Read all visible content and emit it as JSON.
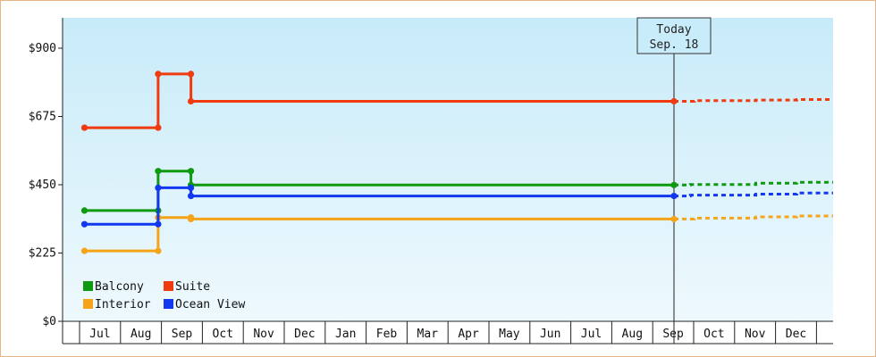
{
  "chart_data": {
    "type": "line",
    "title": "",
    "xlabel": "",
    "ylabel": "",
    "ylim": [
      0,
      1000
    ],
    "yticks": [
      {
        "value": 0,
        "label": "$0"
      },
      {
        "value": 225,
        "label": "$225"
      },
      {
        "value": 450,
        "label": "$450"
      },
      {
        "value": 675,
        "label": "$675"
      },
      {
        "value": 900,
        "label": "$900"
      }
    ],
    "months": [
      "Jul",
      "Aug",
      "Sep",
      "Oct",
      "Nov",
      "Dec",
      "Jan",
      "Feb",
      "Mar",
      "Apr",
      "May",
      "Jun",
      "Jul",
      "Aug",
      "Sep",
      "Oct",
      "Nov",
      "Dec"
    ],
    "axis_start_month_index": -0.4,
    "axis_end_month_index": 18.3,
    "today": {
      "label_line1": "Today",
      "label_line2": "Sep. 18",
      "month_index": 14.0
    },
    "legend": {
      "placement": "bottom-left"
    },
    "grid": false,
    "series": [
      {
        "name": "Balcony",
        "color": "#0e9a0e",
        "steps": [
          {
            "x": -0.4,
            "y": 365
          },
          {
            "x": 1.4,
            "y": 365
          },
          {
            "x": 1.4,
            "y": 495
          },
          {
            "x": 2.2,
            "y": 495
          },
          {
            "x": 2.2,
            "y": 449
          },
          {
            "x": 14.0,
            "y": 449
          }
        ],
        "forecast": [
          {
            "x": 14.0,
            "y": 449
          },
          {
            "x": 14.4,
            "y": 449
          },
          {
            "x": 14.4,
            "y": 451
          },
          {
            "x": 16.0,
            "y": 451
          },
          {
            "x": 16.0,
            "y": 455
          },
          {
            "x": 17.0,
            "y": 455
          },
          {
            "x": 17.0,
            "y": 458
          },
          {
            "x": 18.3,
            "y": 458
          }
        ]
      },
      {
        "name": "Suite",
        "color": "#f03a10",
        "steps": [
          {
            "x": -0.4,
            "y": 638
          },
          {
            "x": 1.4,
            "y": 638
          },
          {
            "x": 1.4,
            "y": 815
          },
          {
            "x": 2.2,
            "y": 815
          },
          {
            "x": 2.2,
            "y": 725
          },
          {
            "x": 14.0,
            "y": 725
          }
        ],
        "forecast": [
          {
            "x": 14.0,
            "y": 725
          },
          {
            "x": 14.5,
            "y": 725
          },
          {
            "x": 14.5,
            "y": 727
          },
          {
            "x": 16.0,
            "y": 727
          },
          {
            "x": 16.0,
            "y": 729
          },
          {
            "x": 17.0,
            "y": 729
          },
          {
            "x": 17.0,
            "y": 731
          },
          {
            "x": 18.3,
            "y": 731
          }
        ]
      },
      {
        "name": "Interior",
        "color": "#f5a318",
        "steps": [
          {
            "x": -0.4,
            "y": 232
          },
          {
            "x": 1.4,
            "y": 232
          },
          {
            "x": 1.4,
            "y": 342
          },
          {
            "x": 2.2,
            "y": 342
          },
          {
            "x": 2.2,
            "y": 337
          },
          {
            "x": 14.0,
            "y": 337
          }
        ],
        "forecast": [
          {
            "x": 14.0,
            "y": 337
          },
          {
            "x": 14.5,
            "y": 337
          },
          {
            "x": 14.5,
            "y": 340
          },
          {
            "x": 16.0,
            "y": 340
          },
          {
            "x": 16.0,
            "y": 344
          },
          {
            "x": 17.0,
            "y": 344
          },
          {
            "x": 17.0,
            "y": 347
          },
          {
            "x": 18.3,
            "y": 347
          }
        ]
      },
      {
        "name": "Ocean View",
        "color": "#1238f0",
        "steps": [
          {
            "x": -0.4,
            "y": 320
          },
          {
            "x": 1.4,
            "y": 320
          },
          {
            "x": 1.4,
            "y": 440
          },
          {
            "x": 2.2,
            "y": 440
          },
          {
            "x": 2.2,
            "y": 413
          },
          {
            "x": 14.0,
            "y": 413
          }
        ],
        "forecast": [
          {
            "x": 14.0,
            "y": 413
          },
          {
            "x": 14.4,
            "y": 413
          },
          {
            "x": 14.4,
            "y": 416
          },
          {
            "x": 16.0,
            "y": 416
          },
          {
            "x": 16.0,
            "y": 419
          },
          {
            "x": 17.0,
            "y": 419
          },
          {
            "x": 17.0,
            "y": 423
          },
          {
            "x": 18.3,
            "y": 423
          }
        ]
      }
    ]
  }
}
